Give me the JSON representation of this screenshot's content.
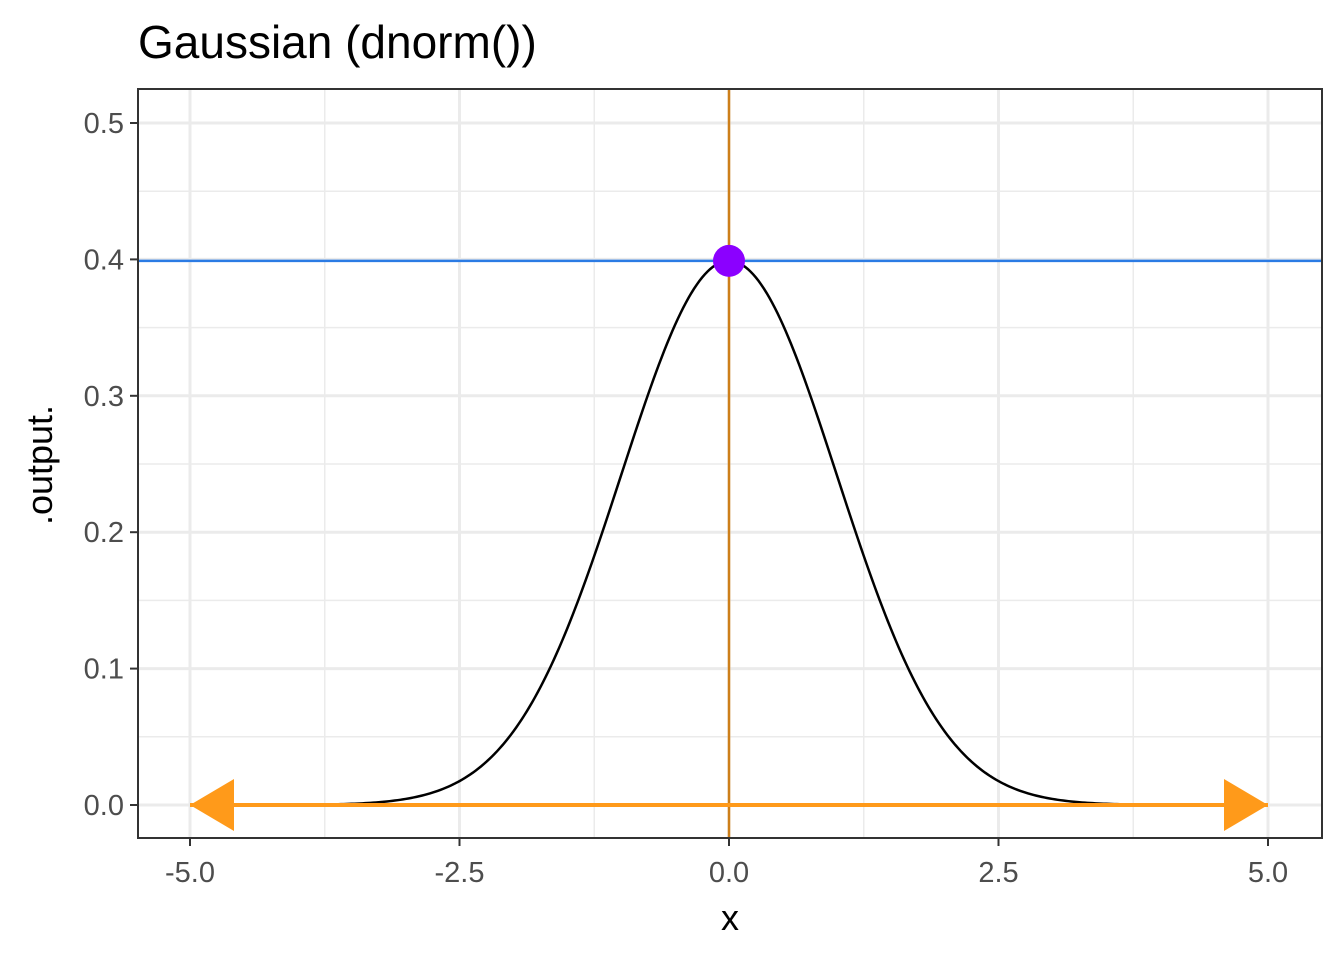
{
  "chart_data": {
    "type": "line",
    "title": "Gaussian (dnorm())",
    "xlabel": "x",
    "ylabel": ".output.",
    "xlim": [
      -5.0,
      5.0
    ],
    "ylim": [
      0.0,
      0.5
    ],
    "x_ticks": [
      "-5.0",
      "-2.5",
      "0.0",
      "2.5",
      "5.0"
    ],
    "y_ticks": [
      "0.0",
      "0.1",
      "0.2",
      "0.3",
      "0.4",
      "0.5"
    ],
    "grid": true,
    "function": "dnorm",
    "series": [
      {
        "color": "#000000",
        "x": [
          -5.0,
          -4.5,
          -4.0,
          -3.5,
          -3.0,
          -2.5,
          -2.0,
          -1.5,
          -1.0,
          -0.5,
          0.0,
          0.5,
          1.0,
          1.5,
          2.0,
          2.5,
          3.0,
          3.5,
          4.0,
          4.5,
          5.0
        ],
        "y": [
          1.5e-06,
          1.6e-05,
          0.000134,
          0.000873,
          0.00443,
          0.0175,
          0.054,
          0.1295,
          0.242,
          0.3521,
          0.3989,
          0.3521,
          0.242,
          0.1295,
          0.054,
          0.0175,
          0.00443,
          0.000873,
          0.000134,
          1.6e-05,
          1.5e-06
        ]
      }
    ],
    "annotations": {
      "hline": {
        "y": 0.3989,
        "color": "#2b7be4"
      },
      "vline": {
        "x": 0.0,
        "color": "#cd7f1a"
      },
      "peak_point": {
        "x": 0.0,
        "y": 0.3989,
        "color": "#8b00ff"
      },
      "domain_arrow": {
        "x_from": -5.0,
        "x_to": 5.0,
        "y": 0.0,
        "color": "#ff9a1a",
        "both_ends": true
      }
    }
  }
}
